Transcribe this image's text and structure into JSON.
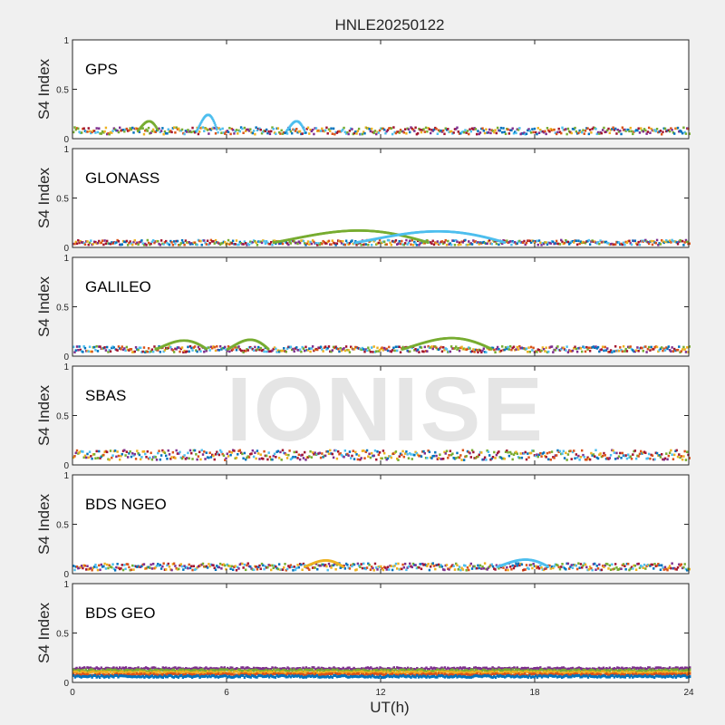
{
  "figure": {
    "title": "HNLE20250122",
    "watermark": "IONISE",
    "xlabel": "UT(h)"
  },
  "colors": {
    "series": [
      "#0072BD",
      "#D95319",
      "#EDB120",
      "#7E2F8E",
      "#77AC30",
      "#4DBEEE",
      "#A2142F"
    ],
    "axes_background": "#ffffff",
    "figure_background": "#f0f0f0"
  },
  "chart_data": [
    {
      "type": "scatter",
      "label": "GPS",
      "ylabel": "S4 Index",
      "xlim": [
        0,
        24
      ],
      "ylim": [
        0,
        1
      ],
      "xticks": [
        0,
        6,
        12,
        18,
        24
      ],
      "yticks": [
        0,
        0.5,
        1
      ],
      "grid": false,
      "baseline": 0.08,
      "spread": 0.035,
      "arcs": [
        {
          "x0": 2.5,
          "x1": 3.3,
          "peak": 0.2,
          "color": 4
        },
        {
          "x0": 4.8,
          "x1": 5.6,
          "peak": 0.28,
          "color": 5
        },
        {
          "x0": 8.3,
          "x1": 9.0,
          "peak": 0.2,
          "color": 5
        }
      ]
    },
    {
      "type": "scatter",
      "label": "GLONASS",
      "ylabel": "S4 Index",
      "xlim": [
        0,
        24
      ],
      "ylim": [
        0,
        1
      ],
      "xticks": [
        0,
        6,
        12,
        18,
        24
      ],
      "yticks": [
        0,
        0.5,
        1
      ],
      "grid": false,
      "baseline": 0.05,
      "spread": 0.025,
      "arcs": [
        {
          "x0": 7.8,
          "x1": 13.8,
          "peak": 0.2,
          "color": 4
        },
        {
          "x0": 11.0,
          "x1": 16.8,
          "peak": 0.19,
          "color": 5
        }
      ]
    },
    {
      "type": "scatter",
      "label": "GALILEO",
      "ylabel": "S4 Index",
      "xlim": [
        0,
        24
      ],
      "ylim": [
        0,
        1
      ],
      "xticks": [
        0,
        6,
        12,
        18,
        24
      ],
      "yticks": [
        0,
        0.5,
        1
      ],
      "grid": false,
      "baseline": 0.07,
      "spread": 0.03,
      "arcs": [
        {
          "x0": 3.2,
          "x1": 5.2,
          "peak": 0.18,
          "color": 4
        },
        {
          "x0": 6.0,
          "x1": 7.6,
          "peak": 0.19,
          "color": 4
        },
        {
          "x0": 12.8,
          "x1": 16.3,
          "peak": 0.21,
          "color": 4
        }
      ]
    },
    {
      "type": "scatter",
      "label": "SBAS",
      "ylabel": "S4 Index",
      "xlim": [
        0,
        24
      ],
      "ylim": [
        0,
        1
      ],
      "xticks": [
        0,
        6,
        12,
        18,
        24
      ],
      "yticks": [
        0,
        0.5,
        1
      ],
      "grid": false,
      "baseline": 0.1,
      "spread": 0.05,
      "arcs": []
    },
    {
      "type": "scatter",
      "label": "BDS NGEO",
      "ylabel": "S4 Index",
      "xlim": [
        0,
        24
      ],
      "ylim": [
        0,
        1
      ],
      "xticks": [
        0,
        6,
        12,
        18,
        24
      ],
      "yticks": [
        0,
        0.5,
        1
      ],
      "grid": false,
      "baseline": 0.07,
      "spread": 0.035,
      "arcs": [
        {
          "x0": 9.0,
          "x1": 10.5,
          "peak": 0.15,
          "color": 2
        },
        {
          "x0": 16.5,
          "x1": 18.5,
          "peak": 0.16,
          "color": 5
        }
      ]
    },
    {
      "type": "scatter",
      "label": "BDS GEO",
      "ylabel": "S4 Index",
      "xlim": [
        0,
        24
      ],
      "ylim": [
        0,
        1
      ],
      "xticks": [
        0,
        6,
        12,
        18,
        24
      ],
      "yticks": [
        0,
        0.5,
        1
      ],
      "grid": false,
      "bands": [
        {
          "value": 0.14,
          "color": 3
        },
        {
          "value": 0.12,
          "color": 4
        },
        {
          "value": 0.1,
          "color": 2
        },
        {
          "value": 0.08,
          "color": 1
        },
        {
          "value": 0.06,
          "color": 0
        }
      ]
    }
  ]
}
